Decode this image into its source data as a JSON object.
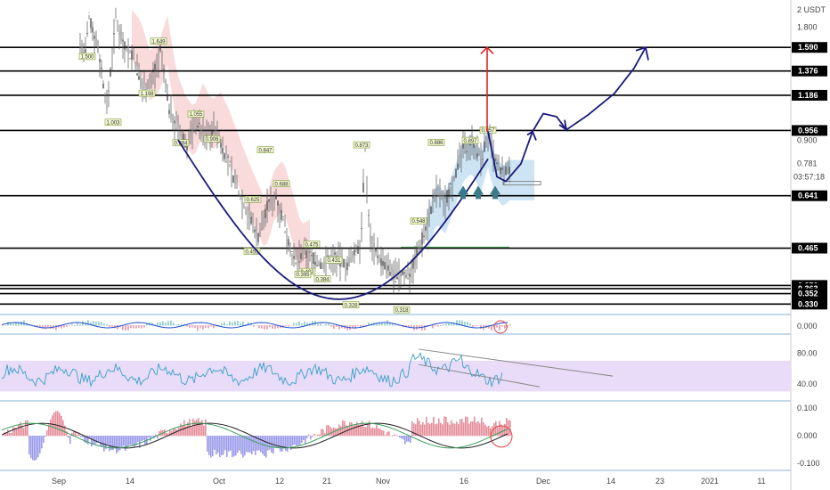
{
  "chart_data": [
    {
      "type": "line",
      "panel": "price",
      "unit_label": "USDT",
      "ylim": [
        0.32,
        2.08
      ],
      "scale": "log",
      "y_ticks": [
        {
          "value": 2,
          "label": "2 USDT"
        },
        {
          "value": 1.8,
          "label": "1.800"
        },
        {
          "value": 0.9,
          "label": "0.900"
        },
        {
          "value": 0.781,
          "label": "0.781"
        }
      ],
      "countdown_label": "03:57:18",
      "horizontal_levels": [
        {
          "value": 1.59,
          "label": "1.590"
        },
        {
          "value": 1.376,
          "label": "1.376"
        },
        {
          "value": 1.186,
          "label": "1.186"
        },
        {
          "value": 0.956,
          "label": "0.956"
        },
        {
          "value": 0.641,
          "label": "0.641"
        },
        {
          "value": 0.465,
          "label": "0.465"
        },
        {
          "value": 0.37,
          "label": "0.370"
        },
        {
          "value": 0.363,
          "label": "0.363"
        },
        {
          "value": 0.352,
          "label": "0.352"
        },
        {
          "value": 0.33,
          "label": "0.330"
        }
      ],
      "price_annotations": [
        "1.500",
        "1.003",
        "1.649",
        "1.198",
        "0.884",
        "1.055",
        "0.906",
        "0.847",
        "0.688",
        "0.625",
        "0.455",
        "0.475",
        "0.402",
        "0.431",
        "0.395",
        "0.384",
        "0.328",
        "0.873",
        "0.548",
        "0.318",
        "0.886",
        "0.897",
        "0.957"
      ],
      "x_ticks": [
        "Sep",
        "14",
        "Oct",
        "12",
        "21",
        "Nov",
        "16",
        "Dec",
        "14",
        "23",
        "2021",
        "11"
      ],
      "colors": {
        "candle": "#555555",
        "level": "#000000",
        "cup": "#1a1a7a",
        "target": "#e02020",
        "arrow_up": "#3a7a8a",
        "cloud_red": "#f6cccc",
        "cloud_blue": "#b8d8f0"
      }
    },
    {
      "type": "line",
      "panel": "oscillator_1",
      "y_ticks": [
        {
          "value": 0,
          "label": "0.000"
        }
      ]
    },
    {
      "type": "line",
      "panel": "rsi",
      "ylim": [
        20,
        100
      ],
      "y_ticks": [
        {
          "value": 80,
          "label": "80.00"
        },
        {
          "value": 40,
          "label": "40.00"
        }
      ],
      "band": [
        30,
        70
      ]
    },
    {
      "type": "bar",
      "panel": "histogram",
      "ylim": [
        -0.12,
        0.12
      ],
      "y_ticks": [
        {
          "value": 0.1,
          "label": "0.100"
        },
        {
          "value": 0,
          "label": "0.000"
        },
        {
          "value": -0.1,
          "label": "-0.100"
        }
      ]
    }
  ]
}
